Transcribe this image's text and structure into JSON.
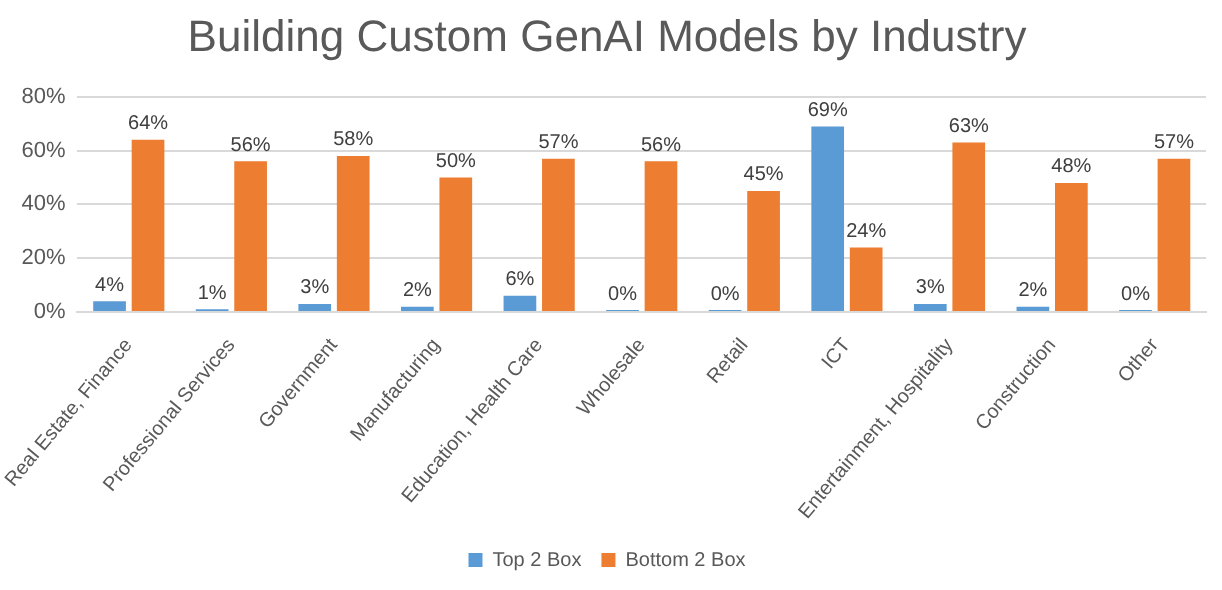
{
  "chart_data": {
    "type": "bar",
    "title": "Building Custom GenAI Models by Industry",
    "categories": [
      "Real Estate, Finance",
      "Professional Services",
      "Government",
      "Manufacturing",
      "Education, Health Care",
      "Wholesale",
      "Retail",
      "ICT",
      "Entertainment, Hospitality",
      "Construction",
      "Other"
    ],
    "series": [
      {
        "name": "Top 2 Box",
        "color": "#5b9bd5",
        "values": [
          4,
          1,
          3,
          2,
          6,
          0,
          0,
          69,
          3,
          2,
          0
        ],
        "value_labels": [
          "4%",
          "1%",
          "3%",
          "2%",
          "6%",
          "0%",
          "0%",
          "69%",
          "3%",
          "2%",
          "0%"
        ]
      },
      {
        "name": "Bottom 2 Box",
        "color": "#ed7d31",
        "values": [
          64,
          56,
          58,
          50,
          57,
          56,
          45,
          24,
          63,
          48,
          57
        ],
        "value_labels": [
          "64%",
          "56%",
          "58%",
          "50%",
          "57%",
          "56%",
          "45%",
          "24%",
          "63%",
          "48%",
          "57%"
        ]
      }
    ],
    "ylim": [
      0,
      80
    ],
    "yticks": [
      {
        "value": 0,
        "label": "0%"
      },
      {
        "value": 20,
        "label": "20%"
      },
      {
        "value": 40,
        "label": "40%"
      },
      {
        "value": 60,
        "label": "60%"
      },
      {
        "value": 80,
        "label": "80%"
      }
    ],
    "grid": "y",
    "legend": "bottom"
  }
}
